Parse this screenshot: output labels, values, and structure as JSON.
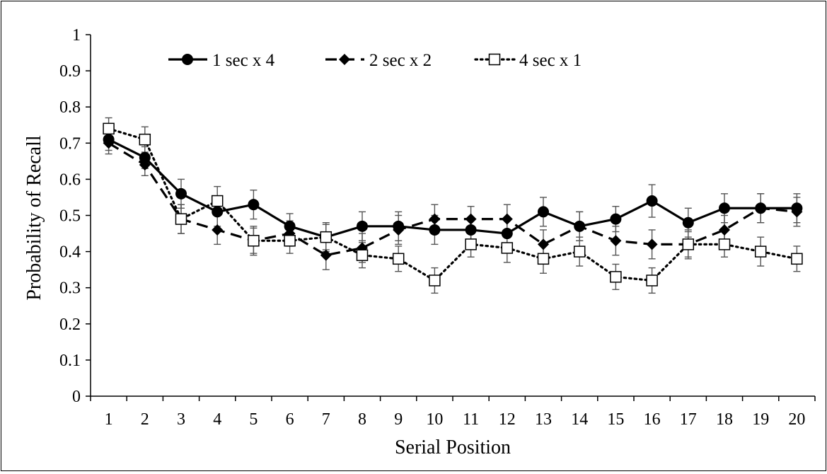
{
  "chart_data": {
    "type": "line",
    "title": "",
    "xlabel": "Serial Position",
    "ylabel": "Probability of Recall",
    "x": [
      1,
      2,
      3,
      4,
      5,
      6,
      7,
      8,
      9,
      10,
      11,
      12,
      13,
      14,
      15,
      16,
      17,
      18,
      19,
      20
    ],
    "xlim": [
      0.5,
      20.5
    ],
    "ylim": [
      0,
      1
    ],
    "yticks": [
      "0",
      "0.1",
      "0.2",
      "0.3",
      "0.4",
      "0.5",
      "0.6",
      "0.7",
      "0.8",
      "0.9",
      "1"
    ],
    "xticks": [
      "1",
      "2",
      "3",
      "4",
      "5",
      "6",
      "7",
      "8",
      "9",
      "10",
      "11",
      "12",
      "13",
      "14",
      "15",
      "16",
      "17",
      "18",
      "19",
      "20"
    ],
    "grid": false,
    "legend_position": "top",
    "error_bars": true,
    "series": [
      {
        "name": "1 sec x 4",
        "line_style": "solid",
        "marker": "filled-circle",
        "color": "#000000",
        "values": [
          0.71,
          0.66,
          0.56,
          0.51,
          0.53,
          0.47,
          0.44,
          0.47,
          0.47,
          0.46,
          0.46,
          0.45,
          0.51,
          0.47,
          0.49,
          0.54,
          0.48,
          0.52,
          0.52,
          0.52
        ],
        "errors": [
          0.03,
          0.03,
          0.04,
          0.04,
          0.04,
          0.035,
          0.04,
          0.04,
          0.04,
          0.04,
          0.035,
          0.04,
          0.04,
          0.04,
          0.035,
          0.045,
          0.04,
          0.04,
          0.04,
          0.04
        ]
      },
      {
        "name": "2 sec x 2",
        "line_style": "dashed",
        "marker": "filled-diamond",
        "color": "#000000",
        "values": [
          0.7,
          0.64,
          0.49,
          0.46,
          0.43,
          0.45,
          0.39,
          0.41,
          0.46,
          0.49,
          0.49,
          0.49,
          0.42,
          0.47,
          0.43,
          0.42,
          0.42,
          0.46,
          0.52,
          0.51
        ],
        "errors": [
          0.03,
          0.03,
          0.04,
          0.04,
          0.04,
          0.035,
          0.04,
          0.04,
          0.04,
          0.04,
          0.035,
          0.04,
          0.04,
          0.04,
          0.04,
          0.04,
          0.04,
          0.04,
          0.04,
          0.04
        ]
      },
      {
        "name": "4 sec x 1",
        "line_style": "dotted",
        "marker": "open-square",
        "color": "#000000",
        "values": [
          0.74,
          0.71,
          0.49,
          0.54,
          0.43,
          0.43,
          0.44,
          0.39,
          0.38,
          0.32,
          0.42,
          0.41,
          0.38,
          0.4,
          0.33,
          0.32,
          0.42,
          0.42,
          0.4,
          0.38
        ],
        "errors": [
          0.03,
          0.035,
          0.04,
          0.04,
          0.035,
          0.035,
          0.035,
          0.035,
          0.035,
          0.035,
          0.035,
          0.04,
          0.04,
          0.04,
          0.035,
          0.035,
          0.035,
          0.035,
          0.04,
          0.035
        ]
      }
    ]
  }
}
